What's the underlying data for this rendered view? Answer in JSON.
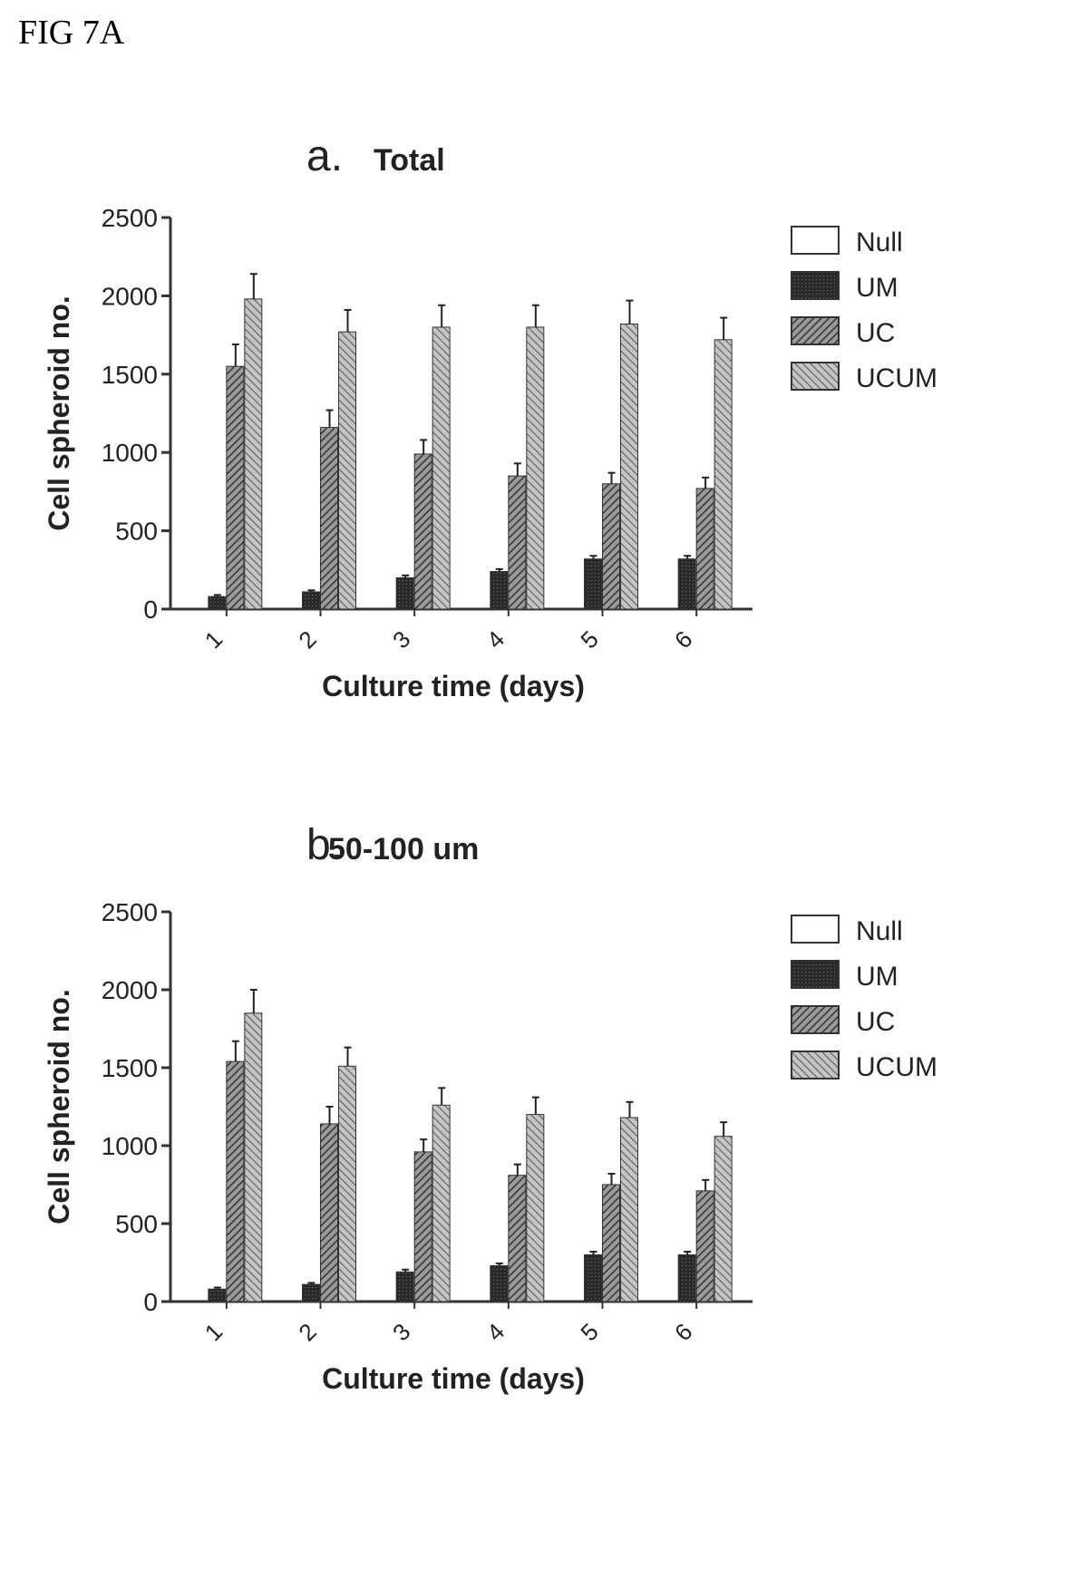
{
  "figure_label": "FIG 7A",
  "legend": [
    {
      "label": "Null",
      "pattern": "null"
    },
    {
      "label": "UM",
      "pattern": "um"
    },
    {
      "label": "UC",
      "pattern": "uc"
    },
    {
      "label": "UCUM",
      "pattern": "ucum"
    }
  ],
  "chart_data": [
    {
      "type": "bar",
      "panel": "a.",
      "title": "Total",
      "xlabel": "Culture time (days)",
      "ylabel": "Cell spheroid no.",
      "ylim": [
        0,
        2500
      ],
      "yticks": [
        "0",
        "500",
        "1000",
        "1500",
        "2000",
        "2500"
      ],
      "categories": [
        "1",
        "2",
        "3",
        "4",
        "5",
        "6"
      ],
      "series": [
        {
          "name": "Null",
          "values": [
            0,
            0,
            0,
            0,
            0,
            0
          ],
          "errors": [
            0,
            0,
            0,
            0,
            0,
            0
          ]
        },
        {
          "name": "UM",
          "values": [
            80,
            110,
            200,
            240,
            320,
            320
          ],
          "errors": [
            10,
            10,
            15,
            15,
            20,
            20
          ]
        },
        {
          "name": "UC",
          "values": [
            1550,
            1160,
            990,
            850,
            800,
            770
          ],
          "errors": [
            140,
            110,
            90,
            80,
            70,
            70
          ]
        },
        {
          "name": "UCUM",
          "values": [
            1980,
            1770,
            1800,
            1800,
            1820,
            1720
          ],
          "errors": [
            160,
            140,
            140,
            140,
            150,
            140
          ]
        }
      ]
    },
    {
      "type": "bar",
      "panel": "b.",
      "title": "50-100 um",
      "xlabel": "Culture time (days)",
      "ylabel": "Cell spheroid no.",
      "ylim": [
        0,
        2500
      ],
      "yticks": [
        "0",
        "500",
        "1000",
        "1500",
        "2000",
        "2500"
      ],
      "categories": [
        "1",
        "2",
        "3",
        "4",
        "5",
        "6"
      ],
      "series": [
        {
          "name": "Null",
          "values": [
            0,
            0,
            0,
            0,
            0,
            0
          ],
          "errors": [
            0,
            0,
            0,
            0,
            0,
            0
          ]
        },
        {
          "name": "UM",
          "values": [
            80,
            110,
            190,
            230,
            300,
            300
          ],
          "errors": [
            10,
            10,
            15,
            15,
            20,
            20
          ]
        },
        {
          "name": "UC",
          "values": [
            1540,
            1140,
            960,
            810,
            750,
            710
          ],
          "errors": [
            130,
            110,
            80,
            70,
            70,
            70
          ]
        },
        {
          "name": "UCUM",
          "values": [
            1850,
            1510,
            1260,
            1200,
            1180,
            1060
          ],
          "errors": [
            150,
            120,
            110,
            110,
            100,
            90
          ]
        }
      ]
    }
  ]
}
